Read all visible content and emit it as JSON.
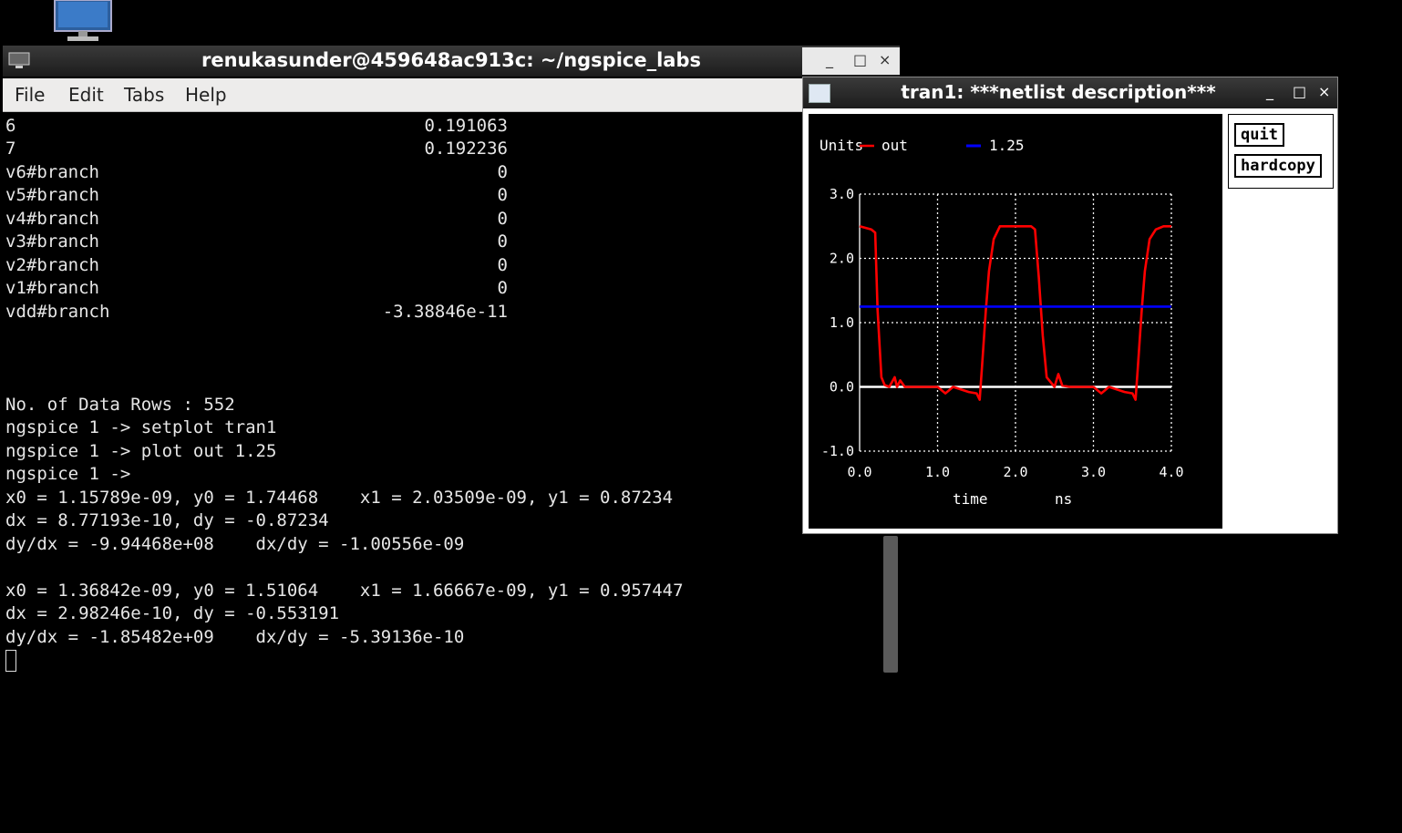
{
  "terminal": {
    "title": "renukasunder@459648ac913c: ~/ngspice_labs",
    "menu": [
      "File",
      "Edit",
      "Tabs",
      "Help"
    ],
    "window_buttons": [
      "_",
      "□",
      "×"
    ],
    "value_rows": [
      {
        "name": "6",
        "value": "0.191063"
      },
      {
        "name": "7",
        "value": "0.192236"
      },
      {
        "name": "v6#branch",
        "value": "0"
      },
      {
        "name": "v5#branch",
        "value": "0"
      },
      {
        "name": "v4#branch",
        "value": "0"
      },
      {
        "name": "v3#branch",
        "value": "0"
      },
      {
        "name": "v2#branch",
        "value": "0"
      },
      {
        "name": "v1#branch",
        "value": "0"
      },
      {
        "name": "vdd#branch",
        "value": "-3.38846e-11"
      }
    ],
    "lines": [
      "No. of Data Rows : 552",
      "ngspice 1 -> setplot tran1",
      "ngspice 1 -> plot out 1.25",
      "ngspice 1 ->",
      "x0 = 1.15789e-09, y0 = 1.74468    x1 = 2.03509e-09, y1 = 0.87234",
      "dx = 8.77193e-10, dy = -0.87234",
      "dy/dx = -9.94468e+08    dx/dy = -1.00556e-09",
      "",
      "x0 = 1.36842e-09, y0 = 1.51064    x1 = 1.66667e-09, y1 = 0.957447",
      "dx = 2.98246e-10, dy = -0.553191",
      "dy/dx = -1.85482e+09    dx/dy = -5.39136e-10"
    ]
  },
  "plot_window": {
    "title": "tran1: ***netlist description***",
    "window_buttons": [
      "_",
      "□",
      "×"
    ],
    "buttons": {
      "quit": "quit",
      "hardcopy": "hardcopy"
    }
  },
  "chart_data": {
    "type": "line",
    "ylabel": "Units",
    "xlabel": "time",
    "xunit": "ns",
    "xlim": [
      0,
      4
    ],
    "ylim": [
      -1,
      3
    ],
    "xticks": [
      "0.0",
      "1.0",
      "2.0",
      "3.0",
      "4.0"
    ],
    "yticks": [
      "3.0",
      "2.0",
      "1.0",
      "0.0",
      "-1.0"
    ],
    "grid": true,
    "legend_placement": "top",
    "series": [
      {
        "name": "out",
        "color": "#ff0000",
        "x": [
          0.0,
          0.15,
          0.2,
          0.23,
          0.28,
          0.32,
          0.38,
          0.45,
          0.48,
          0.52,
          0.58,
          0.7,
          1.0,
          1.1,
          1.2,
          1.4,
          1.5,
          1.54,
          1.57,
          1.62,
          1.66,
          1.72,
          1.8,
          1.9,
          2.05,
          2.2,
          2.25,
          2.3,
          2.35,
          2.4,
          2.5,
          2.55,
          2.6,
          2.7,
          3.0,
          3.1,
          3.2,
          3.4,
          3.5,
          3.54,
          3.57,
          3.62,
          3.66,
          3.72,
          3.8,
          3.9,
          4.0
        ],
        "y": [
          2.5,
          2.45,
          2.4,
          1.2,
          0.15,
          0.03,
          0.0,
          0.15,
          0.0,
          0.1,
          0.0,
          0.0,
          0.0,
          -0.1,
          0.0,
          -0.08,
          -0.1,
          -0.2,
          0.3,
          1.2,
          1.8,
          2.3,
          2.5,
          2.5,
          2.5,
          2.5,
          2.45,
          1.7,
          0.8,
          0.15,
          0.0,
          0.2,
          0.02,
          0.0,
          0.0,
          -0.1,
          0.0,
          -0.08,
          -0.1,
          -0.2,
          0.3,
          1.2,
          1.8,
          2.3,
          2.45,
          2.5,
          2.5
        ]
      },
      {
        "name": "1.25",
        "color": "#0000ff",
        "x": [
          0.0,
          4.0
        ],
        "y": [
          1.25,
          1.25
        ]
      }
    ]
  }
}
